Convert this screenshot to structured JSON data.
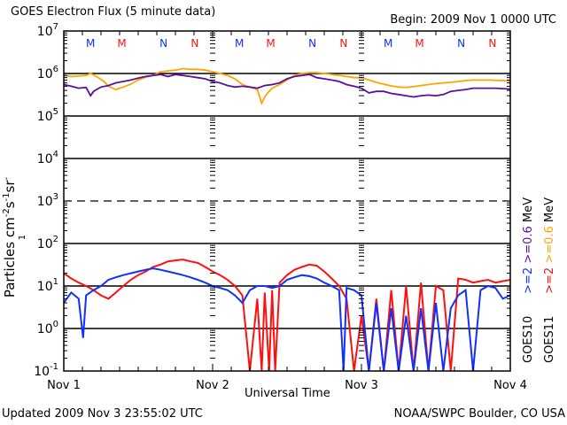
{
  "header": {
    "title": "GOES Electron Flux (5 minute data)",
    "begin": "Begin: 2009 Nov 1 0000 UTC"
  },
  "footer": {
    "updated": "Updated 2009 Nov  3 23:55:02 UTC",
    "credit": "NOAA/SWPC Boulder, CO USA"
  },
  "legend": {
    "goes10_name": "GOES10",
    "goes10_e2": ">=2",
    "goes10_e06": ">=0.6",
    "goes10_unit": "MeV",
    "goes11_name": "GOES11",
    "goes11_e2": ">=2",
    "goes11_e06": ">=0.6",
    "goes11_unit": "MeV"
  },
  "colors": {
    "goes10_e2": "#1030ff",
    "goes11_e2": "#ff1010",
    "goes10_e06": "#5a0fa0",
    "goes11_e06": "#ffa500",
    "marker_m_n_blue": "#1030ff",
    "marker_m_n_red": "#ff1010"
  },
  "chart_data": {
    "type": "line",
    "title": "GOES Electron Flux (5 minute data)",
    "xlabel": "Universal Time",
    "ylabel_base": "Particles cm",
    "ylabel_parts": [
      "-2",
      "s",
      "-1",
      "sr",
      "-1"
    ],
    "yscale": "log",
    "ylim": [
      0.1,
      10000000
    ],
    "xlim_days": [
      0,
      3
    ],
    "x_tick_labels": [
      "Nov 1",
      "Nov 2",
      "Nov 3",
      "Nov 4"
    ],
    "y_tick_labels": [
      {
        "exp": "7",
        "value": 10000000
      },
      {
        "exp": "6",
        "value": 1000000
      },
      {
        "exp": "5",
        "value": 100000
      },
      {
        "exp": "4",
        "value": 10000
      },
      {
        "exp": "3",
        "value": 1000
      },
      {
        "exp": "2",
        "value": 100
      },
      {
        "exp": "1",
        "value": 10
      },
      {
        "exp": "0",
        "value": 1
      },
      {
        "exp": "-1",
        "value": 0.1
      }
    ],
    "y_tick_base": "10",
    "gridlines": {
      "solid_decades": [
        1000000,
        100000,
        10000,
        100,
        10,
        1
      ],
      "dashed_decades": [
        1000
      ]
    },
    "top_markers": [
      {
        "label": "M",
        "day": 0.18,
        "color": "blue"
      },
      {
        "label": "M",
        "day": 0.39,
        "color": "red"
      },
      {
        "label": "N",
        "day": 0.67,
        "color": "blue"
      },
      {
        "label": "N",
        "day": 0.88,
        "color": "red"
      },
      {
        "label": "M",
        "day": 1.18,
        "color": "blue"
      },
      {
        "label": "M",
        "day": 1.39,
        "color": "red"
      },
      {
        "label": "N",
        "day": 1.67,
        "color": "blue"
      },
      {
        "label": "N",
        "day": 1.88,
        "color": "red"
      },
      {
        "label": "M",
        "day": 2.18,
        "color": "blue"
      },
      {
        "label": "M",
        "day": 2.39,
        "color": "red"
      },
      {
        "label": "N",
        "day": 2.67,
        "color": "blue"
      },
      {
        "label": "N",
        "day": 2.88,
        "color": "red"
      }
    ],
    "series": [
      {
        "name": "GOES11 >=0.6 MeV",
        "color_key": "goes11_e06",
        "x_days": [
          0,
          0.05,
          0.1,
          0.15,
          0.18,
          0.22,
          0.27,
          0.3,
          0.35,
          0.4,
          0.45,
          0.5,
          0.55,
          0.6,
          0.65,
          0.7,
          0.75,
          0.8,
          0.85,
          0.9,
          0.95,
          1.0,
          1.05,
          1.1,
          1.15,
          1.2,
          1.25,
          1.3,
          1.33,
          1.35,
          1.37,
          1.4,
          1.45,
          1.5,
          1.55,
          1.6,
          1.65,
          1.7,
          1.75,
          1.8,
          1.85,
          1.9,
          1.95,
          2.0,
          2.05,
          2.1,
          2.15,
          2.2,
          2.25,
          2.3,
          2.35,
          2.4,
          2.45,
          2.5,
          2.55,
          2.6,
          2.65,
          2.7,
          2.75,
          2.8,
          2.85,
          2.9,
          2.95,
          3.0
        ],
        "y": [
          900000,
          850000,
          870000,
          900000,
          1000000,
          850000,
          650000,
          500000,
          420000,
          480000,
          560000,
          700000,
          820000,
          900000,
          1100000,
          1150000,
          1200000,
          1300000,
          1250000,
          1250000,
          1200000,
          1100000,
          1000000,
          900000,
          750000,
          550000,
          480000,
          420000,
          200000,
          280000,
          350000,
          450000,
          550000,
          700000,
          900000,
          1000000,
          1050000,
          1050000,
          1000000,
          950000,
          900000,
          850000,
          800000,
          800000,
          700000,
          620000,
          560000,
          510000,
          480000,
          470000,
          490000,
          520000,
          550000,
          580000,
          600000,
          620000,
          650000,
          680000,
          700000,
          700000,
          700000,
          690000,
          680000,
          660000
        ]
      },
      {
        "name": "GOES10 >=0.6 MeV",
        "color_key": "goes10_e06",
        "x_days": [
          0,
          0.05,
          0.1,
          0.15,
          0.18,
          0.2,
          0.22,
          0.25,
          0.3,
          0.35,
          0.4,
          0.45,
          0.5,
          0.55,
          0.6,
          0.65,
          0.7,
          0.75,
          0.8,
          0.85,
          0.9,
          0.95,
          1.0,
          1.05,
          1.1,
          1.15,
          1.2,
          1.25,
          1.3,
          1.35,
          1.4,
          1.45,
          1.5,
          1.55,
          1.6,
          1.65,
          1.7,
          1.75,
          1.8,
          1.85,
          1.9,
          1.95,
          2.0,
          2.05,
          2.1,
          2.15,
          2.2,
          2.25,
          2.3,
          2.35,
          2.4,
          2.45,
          2.5,
          2.55,
          2.6,
          2.65,
          2.7,
          2.75,
          2.8,
          2.85,
          2.9,
          2.95,
          3.0
        ],
        "y": [
          550000,
          500000,
          450000,
          470000,
          300000,
          380000,
          420000,
          480000,
          520000,
          600000,
          650000,
          700000,
          780000,
          850000,
          900000,
          950000,
          850000,
          950000,
          900000,
          850000,
          800000,
          750000,
          650000,
          600000,
          520000,
          480000,
          500000,
          480000,
          450000,
          520000,
          550000,
          600000,
          750000,
          850000,
          900000,
          950000,
          800000,
          750000,
          700000,
          650000,
          550000,
          500000,
          450000,
          350000,
          380000,
          380000,
          340000,
          320000,
          300000,
          280000,
          300000,
          310000,
          300000,
          320000,
          380000,
          400000,
          420000,
          450000,
          450000,
          450000,
          450000,
          440000,
          430000
        ]
      },
      {
        "name": "GOES11 >=2 MeV",
        "color_key": "goes11_e2",
        "x_days": [
          0,
          0.05,
          0.1,
          0.15,
          0.2,
          0.25,
          0.3,
          0.35,
          0.4,
          0.45,
          0.5,
          0.55,
          0.6,
          0.65,
          0.7,
          0.75,
          0.8,
          0.85,
          0.9,
          0.95,
          1.0,
          1.05,
          1.1,
          1.15,
          1.2,
          1.25,
          1.3,
          1.33,
          1.35,
          1.38,
          1.4,
          1.42,
          1.45,
          1.5,
          1.55,
          1.6,
          1.65,
          1.7,
          1.75,
          1.8,
          1.85,
          1.9,
          1.95,
          2.0,
          2.05,
          2.1,
          2.15,
          2.2,
          2.25,
          2.3,
          2.35,
          2.4,
          2.45,
          2.5,
          2.55,
          2.6,
          2.65,
          2.7,
          2.75,
          2.8,
          2.85,
          2.9,
          2.95,
          3.0
        ],
        "y": [
          20,
          15,
          12,
          10,
          8,
          6,
          5,
          7,
          10,
          14,
          18,
          22,
          28,
          32,
          38,
          40,
          42,
          38,
          35,
          28,
          22,
          18,
          14,
          10,
          6,
          0.1,
          5,
          0.1,
          7,
          0.1,
          8,
          0.1,
          12,
          18,
          24,
          28,
          32,
          30,
          22,
          15,
          10,
          5,
          0.1,
          2,
          0.1,
          5,
          0.1,
          8,
          0.1,
          10,
          0.1,
          12,
          0.1,
          10,
          8,
          0.1,
          15,
          14,
          12,
          13,
          14,
          12,
          13,
          14
        ]
      },
      {
        "name": "GOES10 >=2 MeV",
        "color_key": "goes10_e2",
        "x_days": [
          0,
          0.05,
          0.1,
          0.13,
          0.15,
          0.2,
          0.25,
          0.3,
          0.35,
          0.4,
          0.45,
          0.5,
          0.55,
          0.6,
          0.65,
          0.7,
          0.75,
          0.8,
          0.85,
          0.9,
          0.95,
          1.0,
          1.05,
          1.1,
          1.15,
          1.2,
          1.25,
          1.3,
          1.35,
          1.4,
          1.45,
          1.5,
          1.55,
          1.6,
          1.65,
          1.7,
          1.75,
          1.8,
          1.85,
          1.88,
          1.9,
          1.95,
          2.0,
          2.05,
          2.1,
          2.15,
          2.2,
          2.25,
          2.3,
          2.35,
          2.4,
          2.45,
          2.5,
          2.55,
          2.6,
          2.65,
          2.7,
          2.75,
          2.8,
          2.85,
          2.9,
          2.95,
          3.0
        ],
        "y": [
          4,
          7,
          5,
          0.6,
          6,
          8,
          10,
          14,
          16,
          18,
          20,
          22,
          24,
          26,
          24,
          22,
          20,
          18,
          16,
          14,
          12,
          10,
          9,
          8,
          6,
          4,
          8,
          10,
          10,
          9,
          10,
          14,
          16,
          18,
          17,
          15,
          12,
          10,
          8,
          0.1,
          9,
          8,
          6,
          0.1,
          4,
          0.1,
          3,
          0.1,
          2,
          0.1,
          3,
          0.1,
          4,
          0.1,
          3,
          6,
          8,
          0.1,
          8,
          10,
          9,
          5,
          6
        ]
      }
    ]
  }
}
